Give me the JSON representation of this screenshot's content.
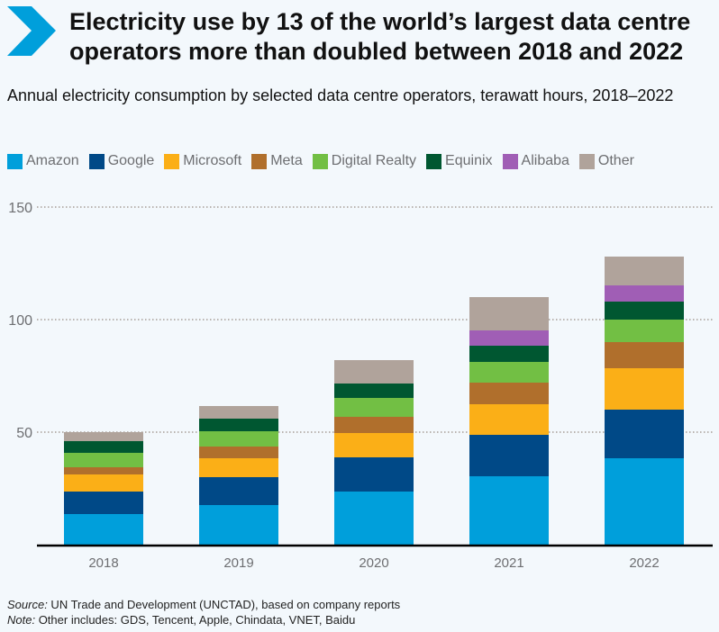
{
  "title": "Electricity use by 13 of the world’s largest data centre operators more than doubled between 2018 and 2022",
  "subtitle": "Annual electricity consumption by selected data centre operators, terawatt hours, 2018–2022",
  "source_label": "Source:",
  "source_text": " UN Trade and Development (UNCTAD), based on company reports",
  "note_label": "Note:",
  "note_text": " Other includes: GDS, Tencent, Apple, Chindata, VNET, Baidu",
  "chart_data": {
    "type": "bar",
    "stacked": true,
    "categories": [
      "2018",
      "2019",
      "2020",
      "2021",
      "2022"
    ],
    "ylim": [
      0,
      150
    ],
    "yticks": [
      50,
      100,
      150
    ],
    "grid": true,
    "legend_position": "top",
    "series": [
      {
        "name": "Amazon",
        "color": "#009fdb",
        "values": [
          13.6,
          17.6,
          23.6,
          30.4,
          38.4
        ]
      },
      {
        "name": "Google",
        "color": "#004987",
        "values": [
          10.0,
          12.4,
          15.2,
          18.4,
          21.6
        ]
      },
      {
        "name": "Microsoft",
        "color": "#fbaf17",
        "values": [
          7.6,
          8.4,
          10.8,
          13.6,
          18.4
        ]
      },
      {
        "name": "Meta",
        "color": "#b06f2c",
        "values": [
          3.2,
          5.2,
          7.2,
          9.6,
          11.6
        ]
      },
      {
        "name": "Digital Realty",
        "color": "#72bf44",
        "values": [
          6.4,
          6.8,
          8.4,
          9.2,
          10.0
        ]
      },
      {
        "name": "Equinix",
        "color": "#005731",
        "values": [
          5.2,
          5.6,
          6.4,
          7.2,
          8.0
        ]
      },
      {
        "name": "Alibaba",
        "color": "#a05eb5",
        "values": [
          0,
          0,
          0,
          6.8,
          7.2
        ]
      },
      {
        "name": "Other",
        "color": "#b0a39b",
        "values": [
          4.0,
          5.6,
          10.4,
          14.8,
          12.8
        ]
      }
    ]
  }
}
